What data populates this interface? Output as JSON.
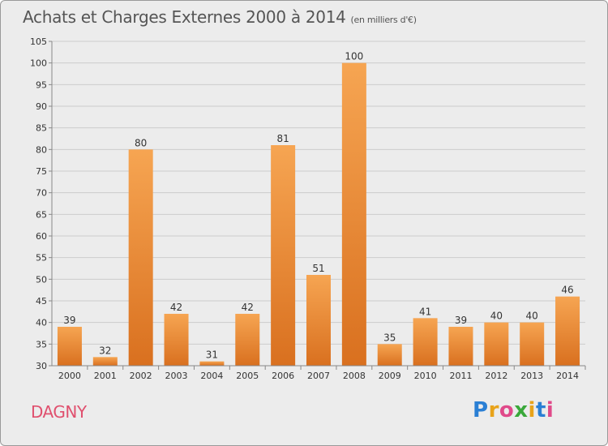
{
  "title": "Achats et Charges Externes 2000 à 2014",
  "unit_note": "(en milliers d'€)",
  "city": "DAGNY",
  "logo": {
    "letters": [
      "P",
      "r",
      "o",
      "x",
      "i",
      "t",
      "i"
    ],
    "colors": [
      "#2a7fd4",
      "#e8a31a",
      "#e04a8a",
      "#3aa83a",
      "#e8a31a",
      "#2a7fd4",
      "#e04a8a"
    ]
  },
  "colors": {
    "background": "#ececec",
    "bar_light": "#f6a552",
    "bar_dark": "#d9701f",
    "grid": "#cccccc"
  },
  "chart_data": {
    "type": "bar",
    "title": "Achats et Charges Externes 2000 à 2014",
    "categories": [
      "2000",
      "2001",
      "2002",
      "2003",
      "2004",
      "2005",
      "2006",
      "2007",
      "2008",
      "2009",
      "2010",
      "2011",
      "2012",
      "2013",
      "2014"
    ],
    "values": [
      39,
      32,
      80,
      42,
      31,
      42,
      81,
      51,
      100,
      35,
      41,
      39,
      40,
      40,
      46
    ],
    "ylim": [
      30,
      105
    ],
    "yticks": [
      30,
      35,
      40,
      45,
      50,
      55,
      60,
      65,
      70,
      75,
      80,
      85,
      90,
      95,
      100,
      105
    ],
    "grid": true,
    "xlabel": "",
    "ylabel": ""
  }
}
